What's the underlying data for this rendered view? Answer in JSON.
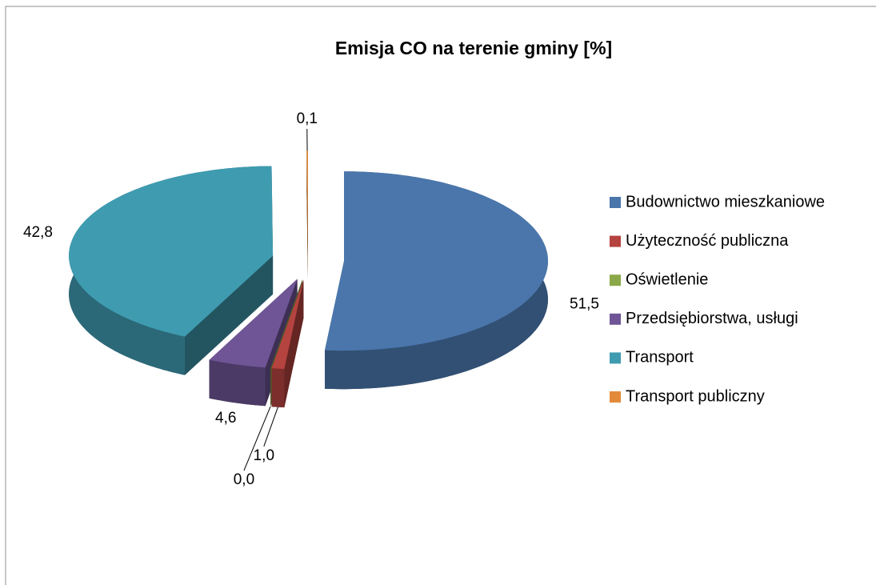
{
  "chart_data": {
    "type": "pie",
    "title": "Emisja CO na terenie gminy [%]",
    "categories": [
      "Budownictwo mieszkaniowe",
      "Użyteczność publiczna",
      "Oświetlenie",
      "Przedsiębiorstwa, usługi",
      "Transport",
      "Transport publiczny"
    ],
    "values": [
      51.5,
      1.0,
      0.0,
      4.6,
      42.8,
      0.1
    ],
    "value_labels": [
      "51,5",
      "1,0",
      "0,0",
      "4,6",
      "42,8",
      "0,1"
    ],
    "colors": [
      "#4a76ab",
      "#b5433f",
      "#8ba848",
      "#6f5596",
      "#3f9bb0",
      "#e38a3a"
    ],
    "legend": "right"
  }
}
